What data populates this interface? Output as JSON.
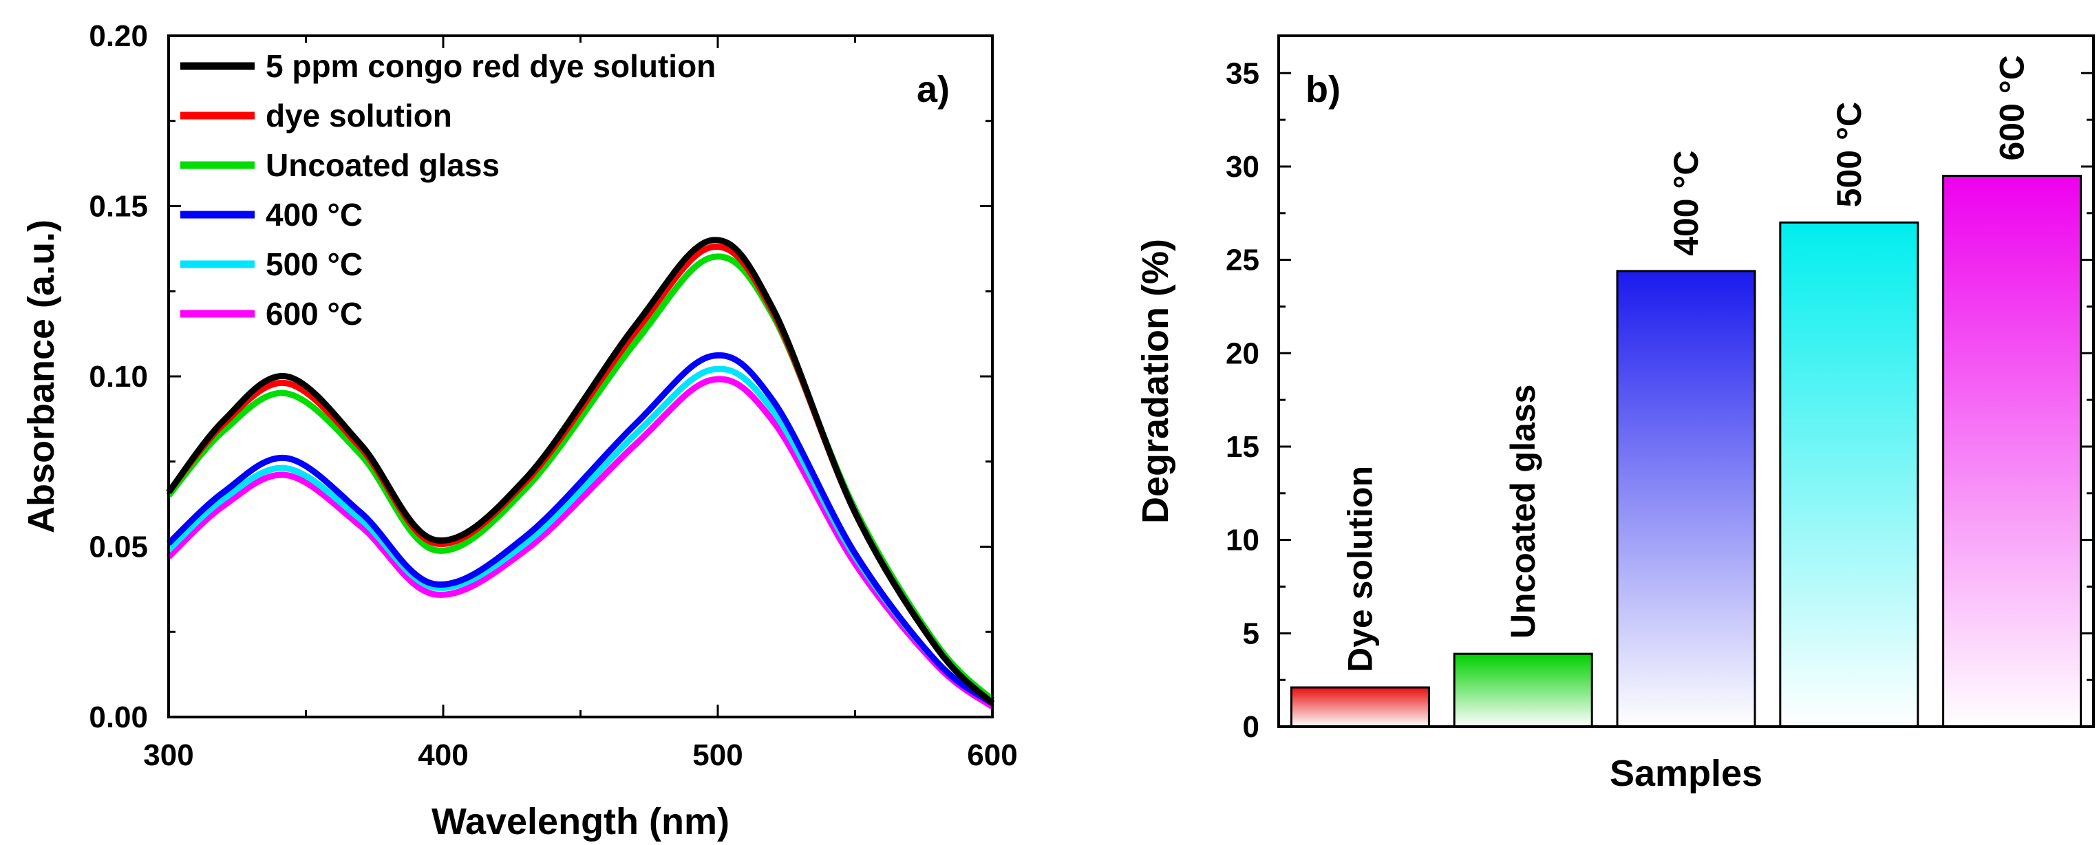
{
  "chart_data": [
    {
      "type": "line",
      "panel_label": "a)",
      "xlabel": "Wavelength (nm)",
      "ylabel": "Absorbance (a.u.)",
      "xlim": [
        300,
        600
      ],
      "ylim": [
        0,
        0.2
      ],
      "x_ticks": [
        300,
        400,
        500,
        600
      ],
      "y_ticks": [
        0.0,
        0.05,
        0.1,
        0.15,
        0.2
      ],
      "y_tick_labels": [
        "0.00",
        "0.05",
        "0.10",
        "0.15",
        "0.20"
      ],
      "legend_position": "top-left",
      "x": [
        300,
        320,
        343,
        370,
        397,
        430,
        470,
        498,
        520,
        550,
        580,
        600
      ],
      "series": [
        {
          "name": "5 ppm congo red dye solution",
          "color": "#000000",
          "values": [
            0.066,
            0.087,
            0.1,
            0.08,
            0.052,
            0.07,
            0.115,
            0.14,
            0.12,
            0.06,
            0.02,
            0.004
          ]
        },
        {
          "name": "dye solution",
          "color": "#ff0000",
          "values": [
            0.066,
            0.086,
            0.098,
            0.079,
            0.051,
            0.069,
            0.113,
            0.138,
            0.119,
            0.06,
            0.02,
            0.004
          ]
        },
        {
          "name": "Uncoated glass",
          "color": "#00dd00",
          "values": [
            0.065,
            0.084,
            0.095,
            0.077,
            0.049,
            0.067,
            0.11,
            0.135,
            0.118,
            0.061,
            0.021,
            0.005
          ]
        },
        {
          "name": "400 °C",
          "color": "#0000ff",
          "values": [
            0.051,
            0.066,
            0.076,
            0.06,
            0.039,
            0.053,
            0.086,
            0.106,
            0.093,
            0.048,
            0.016,
            0.004
          ]
        },
        {
          "name": "500 °C",
          "color": "#00e5ff",
          "values": [
            0.049,
            0.064,
            0.073,
            0.058,
            0.038,
            0.051,
            0.083,
            0.102,
            0.09,
            0.047,
            0.016,
            0.004
          ]
        },
        {
          "name": "600 °C",
          "color": "#ff00ff",
          "values": [
            0.047,
            0.062,
            0.071,
            0.056,
            0.036,
            0.049,
            0.08,
            0.099,
            0.087,
            0.045,
            0.015,
            0.003
          ]
        }
      ]
    },
    {
      "type": "bar",
      "panel_label": "b)",
      "xlabel": "Samples",
      "ylabel": "Degradation (%)",
      "ylim": [
        0,
        37
      ],
      "y_ticks": [
        0,
        5,
        10,
        15,
        20,
        25,
        30,
        35
      ],
      "categories": [
        "Dye solution",
        "Uncoated glass",
        "400 °C",
        "500 °C",
        "600 °C"
      ],
      "values": [
        2.1,
        3.9,
        24.4,
        27.0,
        29.5
      ],
      "colors": [
        "#e81010",
        "#00d000",
        "#1a1aee",
        "#00eeee",
        "#ee00ee"
      ]
    }
  ]
}
